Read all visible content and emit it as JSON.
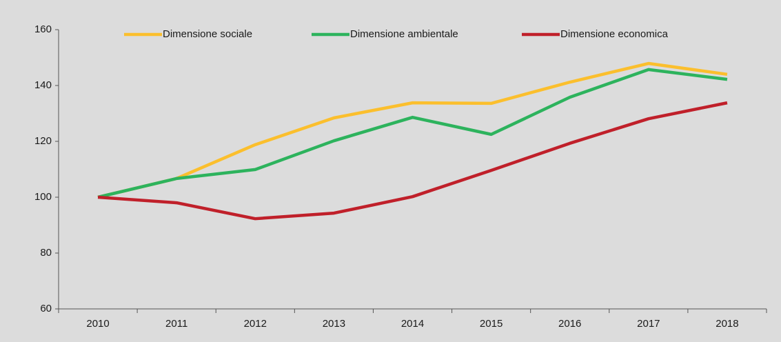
{
  "chart_data": {
    "type": "line",
    "categories": [
      "2010",
      "2011",
      "2012",
      "2013",
      "2014",
      "2015",
      "2016",
      "2017",
      "2018"
    ],
    "series": [
      {
        "name": "Dimensione sociale",
        "color": "#fbbf2d",
        "values": [
          100,
          106.7,
          118.8,
          128.4,
          133.8,
          133.6,
          141.2,
          147.9,
          144
        ]
      },
      {
        "name": "Dimensione ambientale",
        "color": "#2db35d",
        "values": [
          100,
          106.7,
          109.9,
          120.2,
          128.6,
          122.5,
          135.8,
          145.7,
          142.2
        ]
      },
      {
        "name": "Dimensione economica",
        "color": "#c0202a",
        "values": [
          100,
          98,
          92.3,
          94.3,
          100.2,
          109.6,
          119.3,
          128.1,
          133.8
        ]
      }
    ],
    "ylim": [
      60,
      160
    ],
    "yticks": [
      60,
      80,
      100,
      120,
      140,
      160
    ],
    "legend": "top"
  }
}
